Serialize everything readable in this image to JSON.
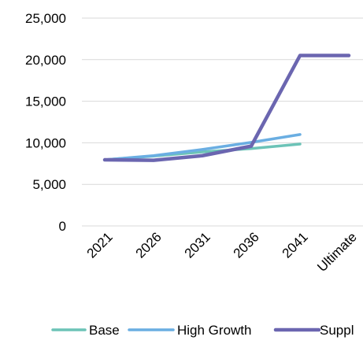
{
  "chart_data": {
    "type": "line",
    "categories": [
      "2021",
      "2026",
      "2031",
      "2036",
      "2041",
      "Ultimate"
    ],
    "series": [
      {
        "name": "Base",
        "color": "#6cc3b7",
        "values": [
          7950,
          8400,
          8900,
          9300,
          9850,
          null
        ]
      },
      {
        "name": "High Growth",
        "color": "#6aaee2",
        "values": [
          7950,
          8450,
          9200,
          10050,
          11000,
          null
        ]
      },
      {
        "name": "Suppl",
        "color": "#6b66b0",
        "values": [
          7950,
          7900,
          8450,
          9600,
          20500,
          20500
        ]
      }
    ],
    "ylim": [
      0,
      25000
    ],
    "yticks": [
      "0",
      "5,000",
      "10,000",
      "15,000",
      "20,000",
      "25,000"
    ],
    "ytick_values": [
      0,
      5000,
      10000,
      15000,
      20000,
      25000
    ],
    "grid": true,
    "legend_position": "bottom",
    "title": "",
    "xlabel": "",
    "ylabel": ""
  }
}
